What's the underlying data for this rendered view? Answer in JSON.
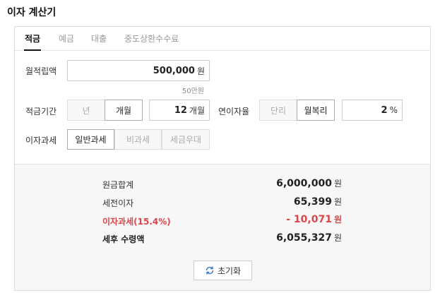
{
  "title": "이자 계산기",
  "tabs": [
    {
      "label": "적금",
      "active": true
    },
    {
      "label": "예금"
    },
    {
      "label": "대출"
    },
    {
      "label": "중도상환수수료"
    }
  ],
  "form": {
    "monthly_label": "월적립액",
    "monthly_value": "500,000",
    "monthly_unit": "원",
    "monthly_hint": "50만원",
    "period_label": "적금기간",
    "period_opts": [
      "년",
      "개월"
    ],
    "period_selected": "개월",
    "period_value": "12",
    "period_unit": "개월",
    "rate_label": "연이자율",
    "rate_opts": [
      "단리",
      "월복리"
    ],
    "rate_selected": "월복리",
    "rate_value": "2",
    "rate_unit": "%",
    "tax_label": "이자과세",
    "tax_opts": [
      "일반과세",
      "비과세",
      "세금우대"
    ],
    "tax_selected": "일반과세"
  },
  "results": [
    {
      "label": "원금합계",
      "value": "6,000,000",
      "unit": "원"
    },
    {
      "label": "세전이자",
      "value": "65,399",
      "unit": "원"
    },
    {
      "label": "이자과세(15.4%)",
      "value": "- 10,071",
      "unit": "원",
      "color": "#d9464b"
    },
    {
      "label": "세후 수령액",
      "value": "6,055,327",
      "unit": "원"
    }
  ],
  "reset_label": "초기화",
  "reset_icon": "refresh-icon"
}
